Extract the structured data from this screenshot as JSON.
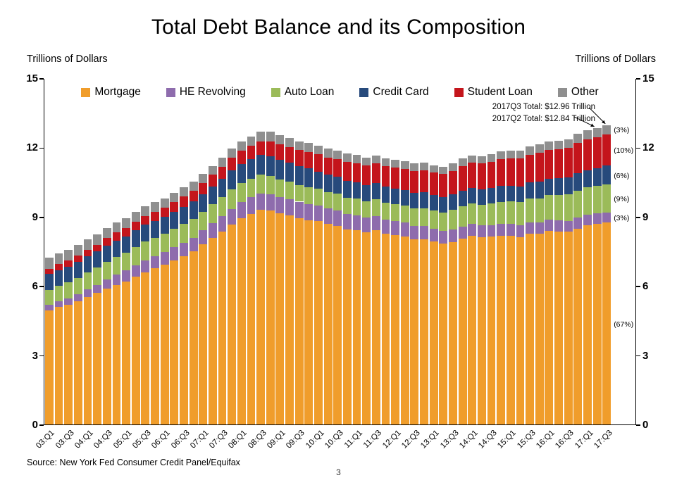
{
  "title": "Total Debt Balance and its Composition",
  "axis_units": {
    "left": "Trillions of Dollars",
    "right": "Trillions of Dollars"
  },
  "annotations": {
    "line1": "2017Q3 Total: $12.96 Trillion",
    "line2": "2017Q2 Total: $12.84 Trillion"
  },
  "source": "Source: New York Fed Consumer Credit Panel/Equifax",
  "page_number": "3",
  "chart_data": {
    "type": "bar",
    "stacked": true,
    "title": "Total Debt Balance and its Composition",
    "ylabel_left": "Trillions of Dollars",
    "ylabel_right": "Trillions of Dollars",
    "ylim": [
      0,
      15
    ],
    "yticks": [
      0,
      3,
      6,
      9,
      12,
      15
    ],
    "grid": false,
    "legend_position": "top-inside",
    "xtick_shown_every": 2,
    "categories": [
      "03:Q1",
      "03:Q2",
      "03:Q3",
      "03:Q4",
      "04:Q1",
      "04:Q2",
      "04:Q3",
      "04:Q4",
      "05:Q1",
      "05:Q2",
      "05:Q3",
      "05:Q4",
      "06:Q1",
      "06:Q2",
      "06:Q3",
      "06:Q4",
      "07:Q1",
      "07:Q2",
      "07:Q3",
      "07:Q4",
      "08:Q1",
      "08:Q2",
      "08:Q3",
      "08:Q4",
      "09:Q1",
      "09:Q2",
      "09:Q3",
      "09:Q4",
      "10:Q1",
      "10:Q2",
      "10:Q3",
      "10:Q4",
      "11:Q1",
      "11:Q2",
      "11:Q3",
      "11:Q4",
      "12:Q1",
      "12:Q2",
      "12:Q3",
      "12:Q4",
      "13:Q1",
      "13:Q2",
      "13:Q3",
      "13:Q4",
      "14:Q1",
      "14:Q2",
      "14:Q3",
      "14:Q4",
      "15:Q1",
      "15:Q2",
      "15:Q3",
      "15:Q4",
      "16:Q1",
      "16:Q2",
      "16:Q3",
      "16:Q4",
      "17:Q1",
      "17:Q2",
      "17:Q3"
    ],
    "series": [
      {
        "name": "Mortgage",
        "color": "#F09D2B",
        "percent_2017q3": "(67%)",
        "values": [
          4.94,
          5.08,
          5.18,
          5.34,
          5.53,
          5.69,
          5.89,
          6.05,
          6.2,
          6.4,
          6.59,
          6.76,
          6.92,
          7.11,
          7.3,
          7.49,
          7.8,
          8.09,
          8.36,
          8.66,
          8.93,
          9.13,
          9.29,
          9.26,
          9.15,
          9.06,
          8.94,
          8.85,
          8.8,
          8.68,
          8.61,
          8.45,
          8.41,
          8.32,
          8.4,
          8.25,
          8.19,
          8.15,
          8.03,
          8.03,
          7.93,
          7.84,
          7.9,
          8.05,
          8.16,
          8.1,
          8.13,
          8.17,
          8.17,
          8.12,
          8.26,
          8.25,
          8.37,
          8.36,
          8.35,
          8.48,
          8.63,
          8.69,
          8.74
        ]
      },
      {
        "name": "HE Revolving",
        "color": "#8E6CAD",
        "percent_2017q3": "(3%)",
        "values": [
          0.24,
          0.26,
          0.28,
          0.3,
          0.33,
          0.36,
          0.4,
          0.44,
          0.47,
          0.5,
          0.52,
          0.54,
          0.56,
          0.57,
          0.58,
          0.6,
          0.61,
          0.63,
          0.65,
          0.68,
          0.7,
          0.71,
          0.71,
          0.71,
          0.71,
          0.71,
          0.71,
          0.7,
          0.69,
          0.68,
          0.67,
          0.67,
          0.66,
          0.64,
          0.63,
          0.63,
          0.61,
          0.59,
          0.57,
          0.56,
          0.55,
          0.54,
          0.54,
          0.53,
          0.53,
          0.52,
          0.51,
          0.51,
          0.51,
          0.5,
          0.49,
          0.49,
          0.49,
          0.48,
          0.47,
          0.47,
          0.46,
          0.45,
          0.45
        ]
      },
      {
        "name": "Auto Loan",
        "color": "#9BBB59",
        "percent_2017q3": "(9%)",
        "values": [
          0.64,
          0.66,
          0.69,
          0.7,
          0.72,
          0.74,
          0.75,
          0.76,
          0.77,
          0.79,
          0.81,
          0.79,
          0.79,
          0.8,
          0.81,
          0.82,
          0.81,
          0.82,
          0.83,
          0.84,
          0.82,
          0.81,
          0.81,
          0.79,
          0.76,
          0.74,
          0.73,
          0.74,
          0.71,
          0.71,
          0.71,
          0.71,
          0.71,
          0.72,
          0.73,
          0.73,
          0.74,
          0.75,
          0.77,
          0.78,
          0.79,
          0.81,
          0.85,
          0.86,
          0.88,
          0.9,
          0.93,
          0.96,
          0.97,
          1.0,
          1.03,
          1.06,
          1.07,
          1.1,
          1.14,
          1.16,
          1.17,
          1.19,
          1.21
        ]
      },
      {
        "name": "Credit Card",
        "color": "#274A7C",
        "percent_2017q3": "(6%)",
        "values": [
          0.69,
          0.69,
          0.69,
          0.7,
          0.7,
          0.7,
          0.71,
          0.72,
          0.71,
          0.72,
          0.73,
          0.73,
          0.72,
          0.73,
          0.74,
          0.75,
          0.75,
          0.77,
          0.8,
          0.84,
          0.84,
          0.85,
          0.86,
          0.87,
          0.84,
          0.82,
          0.81,
          0.81,
          0.76,
          0.74,
          0.73,
          0.73,
          0.7,
          0.69,
          0.69,
          0.7,
          0.68,
          0.67,
          0.67,
          0.68,
          0.66,
          0.66,
          0.67,
          0.68,
          0.66,
          0.67,
          0.68,
          0.7,
          0.68,
          0.7,
          0.71,
          0.73,
          0.71,
          0.73,
          0.75,
          0.78,
          0.76,
          0.78,
          0.81
        ]
      },
      {
        "name": "Student Loan",
        "color": "#C4151C",
        "percent_2017q3": "(10%)",
        "values": [
          0.24,
          0.25,
          0.26,
          0.27,
          0.28,
          0.3,
          0.32,
          0.35,
          0.36,
          0.38,
          0.39,
          0.39,
          0.41,
          0.43,
          0.44,
          0.45,
          0.48,
          0.5,
          0.53,
          0.55,
          0.57,
          0.58,
          0.6,
          0.64,
          0.66,
          0.68,
          0.69,
          0.71,
          0.74,
          0.76,
          0.78,
          0.81,
          0.84,
          0.85,
          0.87,
          0.87,
          0.9,
          0.91,
          0.94,
          0.97,
          0.99,
          1.0,
          1.03,
          1.08,
          1.11,
          1.12,
          1.13,
          1.16,
          1.19,
          1.19,
          1.2,
          1.23,
          1.26,
          1.26,
          1.28,
          1.31,
          1.34,
          1.34,
          1.36
        ]
      },
      {
        "name": "Other",
        "color": "#8F8F8F",
        "percent_2017q3": "(3%)",
        "values": [
          0.48,
          0.47,
          0.47,
          0.46,
          0.45,
          0.45,
          0.45,
          0.44,
          0.43,
          0.42,
          0.42,
          0.41,
          0.4,
          0.4,
          0.4,
          0.4,
          0.4,
          0.39,
          0.39,
          0.39,
          0.39,
          0.39,
          0.4,
          0.41,
          0.41,
          0.4,
          0.39,
          0.39,
          0.38,
          0.37,
          0.36,
          0.36,
          0.35,
          0.35,
          0.34,
          0.34,
          0.33,
          0.33,
          0.33,
          0.32,
          0.31,
          0.31,
          0.31,
          0.32,
          0.32,
          0.32,
          0.33,
          0.33,
          0.33,
          0.34,
          0.34,
          0.36,
          0.35,
          0.36,
          0.36,
          0.38,
          0.37,
          0.39,
          0.39
        ]
      }
    ]
  }
}
